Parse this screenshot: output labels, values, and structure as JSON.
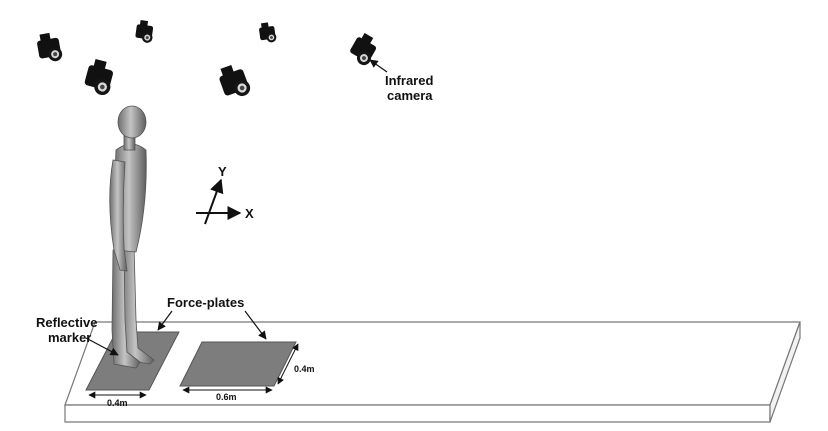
{
  "labels": {
    "infrared_camera_line1": "Infrared",
    "infrared_camera_line2": "camera",
    "reflective_marker_line1": "Reflective",
    "reflective_marker_line2": "marker",
    "force_plates": "Force-plates",
    "axis_x": "X",
    "axis_y": "Y",
    "dim_plate1_width": "0.4m",
    "dim_plate2_width": "0.6m",
    "dim_plate2_depth": "0.4m"
  },
  "icons": {
    "camera": "infrared-camera-icon",
    "human": "human-figure-icon"
  },
  "colors": {
    "walkway_fill": "#ffffff",
    "walkway_stroke": "#777777",
    "plate_fill": "#7d7d7d",
    "camera": "#111111",
    "figure": "#9a9a9a"
  }
}
